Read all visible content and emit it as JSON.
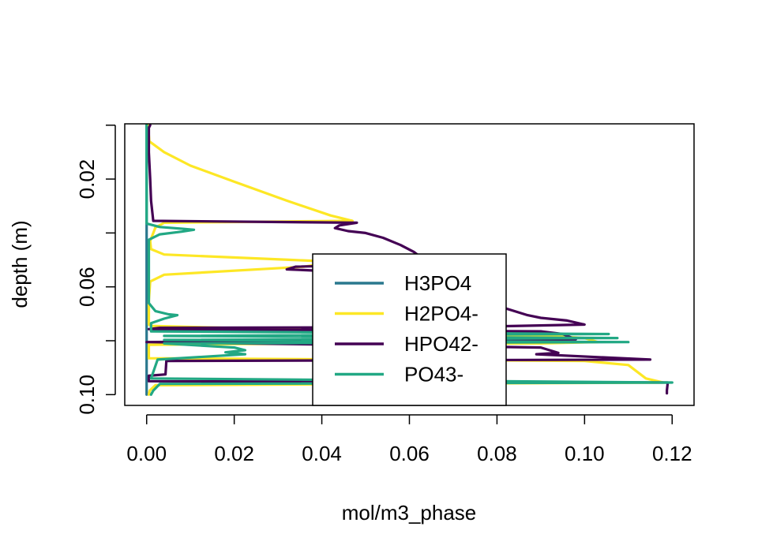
{
  "chart_data": {
    "type": "line",
    "xlabel": "mol/m3_phase",
    "ylabel": "depth (m)",
    "xlim": [
      -0.005,
      0.125
    ],
    "ylim": [
      0.104,
      -0.0005
    ],
    "x_ticks": [
      0.0,
      0.02,
      0.04,
      0.06,
      0.08,
      0.1,
      0.12
    ],
    "x_tick_labels": [
      "0.00",
      "0.02",
      "0.04",
      "0.06",
      "0.08",
      "0.10",
      "0.12"
    ],
    "y_ticks": [
      0.0,
      0.02,
      0.04,
      0.06,
      0.08,
      0.1
    ],
    "y_tick_labels": [
      "",
      "0.02",
      "",
      "0.06",
      "",
      "0.10"
    ],
    "grid": false,
    "legend_position": "center-bottom",
    "series": [
      {
        "name": "H3PO4",
        "color": "#2a788e",
        "points": [
          [
            0.0,
            0.0
          ],
          [
            0.0,
            0.02
          ],
          [
            0.0,
            0.04
          ],
          [
            0.0,
            0.06
          ],
          [
            0.0,
            0.08
          ],
          [
            0.0,
            0.1
          ]
        ]
      },
      {
        "name": "H2PO4-",
        "color": "#fde725",
        "points": [
          [
            0.0003,
            0.0
          ],
          [
            0.0006,
            0.006
          ],
          [
            0.004,
            0.01
          ],
          [
            0.01,
            0.015
          ],
          [
            0.02,
            0.021
          ],
          [
            0.032,
            0.028
          ],
          [
            0.042,
            0.0335
          ],
          [
            0.047,
            0.0355
          ],
          [
            0.004,
            0.0362
          ],
          [
            0.002,
            0.038
          ],
          [
            0.0008,
            0.043
          ],
          [
            0.001,
            0.046
          ],
          [
            0.004,
            0.048
          ],
          [
            0.033,
            0.05
          ],
          [
            0.043,
            0.0507
          ],
          [
            0.036,
            0.0525
          ],
          [
            0.004,
            0.0555
          ],
          [
            0.0008,
            0.058
          ],
          [
            0.0005,
            0.065
          ],
          [
            0.0005,
            0.074
          ],
          [
            0.001,
            0.0745
          ],
          [
            0.05,
            0.0765
          ],
          [
            0.07,
            0.0775
          ],
          [
            0.085,
            0.078
          ],
          [
            0.095,
            0.0785
          ],
          [
            0.1,
            0.079
          ],
          [
            0.103,
            0.0805
          ],
          [
            0.09,
            0.081
          ],
          [
            0.02,
            0.0812
          ],
          [
            0.0005,
            0.0815
          ],
          [
            0.0005,
            0.0865
          ],
          [
            0.1,
            0.0875
          ],
          [
            0.11,
            0.089
          ],
          [
            0.114,
            0.094
          ],
          [
            0.118,
            0.0955
          ],
          [
            0.002,
            0.0965
          ],
          [
            0.0007,
            0.0985
          ],
          [
            0.0005,
            0.1
          ]
        ]
      },
      {
        "name": "HPO42-",
        "color": "#440154",
        "points": [
          [
            0.0008,
            0.0
          ],
          [
            0.0005,
            0.001
          ],
          [
            0.0005,
            0.01
          ],
          [
            0.0008,
            0.02
          ],
          [
            0.001,
            0.028
          ],
          [
            0.0015,
            0.0355
          ],
          [
            0.048,
            0.0362
          ],
          [
            0.044,
            0.0372
          ],
          [
            0.043,
            0.0382
          ],
          [
            0.046,
            0.0393
          ],
          [
            0.05,
            0.04
          ],
          [
            0.054,
            0.0418
          ],
          [
            0.058,
            0.0445
          ],
          [
            0.061,
            0.047
          ],
          [
            0.063,
            0.0495
          ],
          [
            0.064,
            0.0515
          ],
          [
            0.034,
            0.0525
          ],
          [
            0.032,
            0.0535
          ],
          [
            0.05,
            0.0548
          ],
          [
            0.059,
            0.0575
          ],
          [
            0.066,
            0.0605
          ],
          [
            0.072,
            0.0635
          ],
          [
            0.08,
            0.067
          ],
          [
            0.087,
            0.0705
          ],
          [
            0.09,
            0.0715
          ],
          [
            0.096,
            0.0725
          ],
          [
            0.1,
            0.074
          ],
          [
            0.07,
            0.075
          ],
          [
            0.003,
            0.0752
          ],
          [
            0.0005,
            0.0757
          ],
          [
            0.09,
            0.0765
          ],
          [
            0.095,
            0.0775
          ],
          [
            0.098,
            0.0795
          ],
          [
            0.0,
            0.0805
          ],
          [
            0.09,
            0.0825
          ],
          [
            0.094,
            0.0845
          ],
          [
            0.089,
            0.085
          ],
          [
            0.115,
            0.087
          ],
          [
            0.0045,
            0.0875
          ],
          [
            0.0043,
            0.0925
          ],
          [
            0.0005,
            0.093
          ],
          [
            0.0005,
            0.095
          ],
          [
            0.119,
            0.0955
          ],
          [
            0.1188,
            0.0985
          ],
          [
            0.1188,
            0.0995
          ]
        ]
      },
      {
        "name": "PO43-",
        "color": "#22a884",
        "points": [
          [
            0.0,
            0.0
          ],
          [
            0.0,
            0.035
          ],
          [
            0.0,
            0.0365
          ],
          [
            0.003,
            0.0378
          ],
          [
            0.0085,
            0.0385
          ],
          [
            0.0108,
            0.0388
          ],
          [
            0.008,
            0.0395
          ],
          [
            0.003,
            0.0405
          ],
          [
            0.0005,
            0.0425
          ],
          [
            0.0005,
            0.066
          ],
          [
            0.002,
            0.069
          ],
          [
            0.005,
            0.0702
          ],
          [
            0.007,
            0.0705
          ],
          [
            0.004,
            0.0718
          ],
          [
            0.001,
            0.0735
          ],
          [
            0.001,
            0.0765
          ],
          [
            0.1055,
            0.0775
          ],
          [
            0.004,
            0.0782
          ],
          [
            0.1075,
            0.079
          ],
          [
            0.004,
            0.0797
          ],
          [
            0.11,
            0.0805
          ],
          [
            0.004,
            0.081
          ],
          [
            0.02,
            0.0825
          ],
          [
            0.0225,
            0.0835
          ],
          [
            0.018,
            0.0843
          ],
          [
            0.0225,
            0.085
          ],
          [
            0.0025,
            0.087
          ],
          [
            0.001,
            0.094
          ],
          [
            0.12,
            0.0955
          ],
          [
            0.003,
            0.096
          ],
          [
            0.0015,
            0.0985
          ],
          [
            0.001,
            0.1
          ]
        ]
      }
    ]
  }
}
